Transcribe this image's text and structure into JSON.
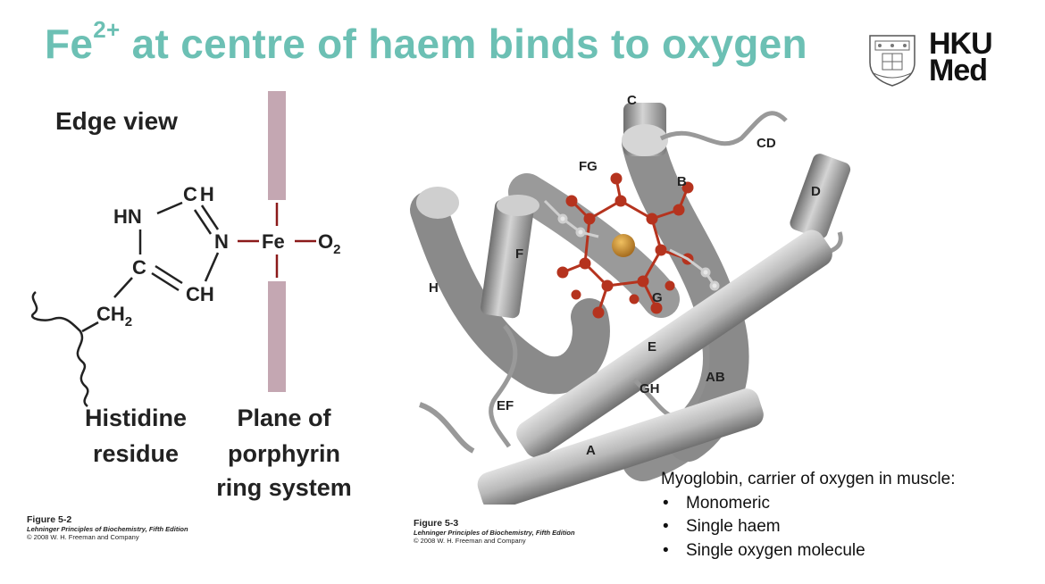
{
  "title": {
    "prefix": "Fe",
    "superscript": "2+",
    "rest": " at centre of haem binds to oxygen"
  },
  "logo": {
    "line1": "HKU",
    "line2": "Med",
    "crest_icon": "university-crest-icon"
  },
  "left_figure": {
    "view_label": "Edge view",
    "atoms": {
      "hn": "HN",
      "ch_top": "CH",
      "n": "N",
      "fe": "Fe",
      "o2": "O",
      "o2_sub": "2",
      "c": "C",
      "ch_bottom": "CH",
      "ch2": "CH",
      "ch2_sub": "2"
    },
    "label_histidine": [
      "Histidine",
      "residue"
    ],
    "label_plane": [
      "Plane of",
      "porphyrin",
      "ring system"
    ],
    "caption": {
      "figure": "Figure 5-2",
      "source": "Lehninger Principles of Biochemistry, Fifth Edition",
      "copyright": "© 2008 W. H. Freeman and Company"
    }
  },
  "right_figure": {
    "helix_labels": {
      "c": "C",
      "cd": "CD",
      "fg": "FG",
      "b": "B",
      "d": "D",
      "f": "F",
      "h": "H",
      "g": "G",
      "e": "E",
      "ab": "AB",
      "gh": "GH",
      "ef": "EF",
      "a": "A"
    },
    "caption": {
      "figure": "Figure 5-3",
      "source": "Lehninger Principles of Biochemistry, Fifth Edition",
      "copyright": "© 2008 W. H. Freeman and Company"
    }
  },
  "info": {
    "heading": "Myoglobin, carrier of oxygen in muscle:",
    "bullets": [
      "Monomeric",
      "Single haem",
      "Single oxygen molecule"
    ]
  },
  "colors": {
    "title": "#6cc0b4",
    "bond": "#8b1a1a",
    "plane": "#c4a7b2",
    "helix": "#9a9a9a",
    "haem": "#b5331e",
    "iron": "#c8922a"
  }
}
